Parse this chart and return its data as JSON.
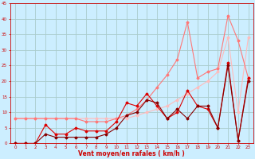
{
  "title": "",
  "xlabel": "Vent moyen/en rafales ( km/h )",
  "ylabel": "",
  "xlim": [
    -0.5,
    23.5
  ],
  "ylim": [
    0,
    45
  ],
  "xticks": [
    0,
    1,
    2,
    3,
    4,
    5,
    6,
    7,
    8,
    9,
    10,
    11,
    12,
    13,
    14,
    15,
    16,
    17,
    18,
    19,
    20,
    21,
    22,
    23
  ],
  "yticks": [
    0,
    5,
    10,
    15,
    20,
    25,
    30,
    35,
    40,
    45
  ],
  "bg_color": "#cceeff",
  "grid_color": "#aacccc",
  "series": [
    {
      "x": [
        0,
        1,
        2,
        3,
        4,
        5,
        6,
        7,
        8,
        9,
        10,
        11,
        12,
        13,
        14,
        15,
        16,
        17,
        18,
        19,
        20,
        21,
        22,
        23
      ],
      "y": [
        8,
        8,
        8,
        8,
        8,
        8,
        8,
        8,
        8,
        8,
        8,
        8,
        9,
        10,
        11,
        12,
        14,
        16,
        18,
        20,
        23,
        34,
        10,
        34
      ],
      "color": "#ffbbbb",
      "marker": "D",
      "markersize": 1.5,
      "linewidth": 0.8
    },
    {
      "x": [
        0,
        1,
        2,
        3,
        4,
        5,
        6,
        7,
        8,
        9,
        10,
        11,
        12,
        13,
        14,
        15,
        16,
        17,
        18,
        19,
        20,
        21,
        22,
        23
      ],
      "y": [
        8,
        8,
        8,
        8,
        8,
        8,
        8,
        7,
        7,
        7,
        8,
        9,
        11,
        14,
        18,
        22,
        27,
        39,
        21,
        23,
        24,
        41,
        33,
        21
      ],
      "color": "#ff7777",
      "marker": "D",
      "markersize": 1.5,
      "linewidth": 0.8
    },
    {
      "x": [
        0,
        1,
        2,
        3,
        4,
        5,
        6,
        7,
        8,
        9,
        10,
        11,
        12,
        13,
        14,
        15,
        16,
        17,
        18,
        19,
        20,
        21,
        22,
        23
      ],
      "y": [
        0,
        0,
        0,
        6,
        3,
        3,
        5,
        4,
        4,
        4,
        7,
        13,
        12,
        16,
        12,
        8,
        10,
        17,
        12,
        11,
        5,
        26,
        1,
        21
      ],
      "color": "#dd0000",
      "marker": "D",
      "markersize": 1.5,
      "linewidth": 0.8
    },
    {
      "x": [
        0,
        1,
        2,
        3,
        4,
        5,
        6,
        7,
        8,
        9,
        10,
        11,
        12,
        13,
        14,
        15,
        16,
        17,
        18,
        19,
        20,
        21,
        22,
        23
      ],
      "y": [
        0,
        0,
        0,
        3,
        2,
        2,
        2,
        2,
        2,
        3,
        5,
        9,
        10,
        14,
        13,
        8,
        11,
        8,
        12,
        12,
        5,
        25,
        1,
        20
      ],
      "color": "#880000",
      "marker": "D",
      "markersize": 1.5,
      "linewidth": 0.8
    }
  ]
}
